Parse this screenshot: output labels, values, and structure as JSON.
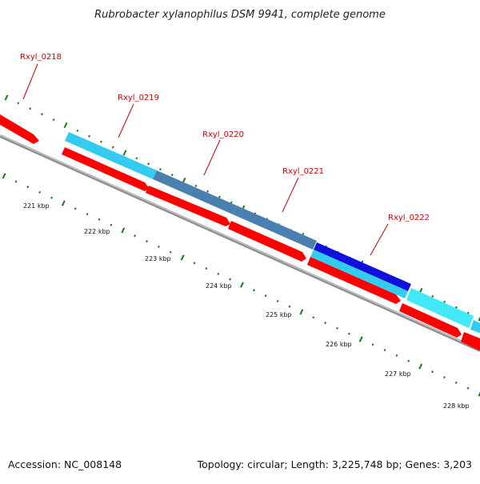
{
  "title": "Rubrobacter xylanophilus DSM 9941, complete genome",
  "footer": {
    "accession": "Accession: NC_008148",
    "summary": "Topology: circular; Length: 3,225,748 bp; Genes: 3,203"
  },
  "colors": {
    "label_red": "#cc0000",
    "feature_red": "#ff0000",
    "feature_red_dark": "#c00000",
    "backbone": "#909090",
    "tick_green": "#1a7a1a",
    "gene_light_blue": "#33ccf0",
    "gene_steel_blue": "#4a80b0",
    "gene_dark_blue": "#1010dd",
    "gene_cyan": "#40e8f8"
  },
  "genes": [
    {
      "label": "Rxyl_0218",
      "color_key": "feature_red"
    },
    {
      "label": "Rxyl_0219",
      "color_key": "gene_light_blue"
    },
    {
      "label": "Rxyl_0220",
      "color_key": "gene_steel_blue"
    },
    {
      "label": "Rxyl_0221",
      "color_key": "gene_steel_blue"
    },
    {
      "label": "Rxyl_0222",
      "color_key": "gene_dark_blue"
    }
  ],
  "tick_labels": [
    "221 kbp",
    "222 kbp",
    "223 kbp",
    "224 kbp",
    "225 kbp",
    "226 kbp",
    "227 kbp",
    "228 kbp"
  ]
}
